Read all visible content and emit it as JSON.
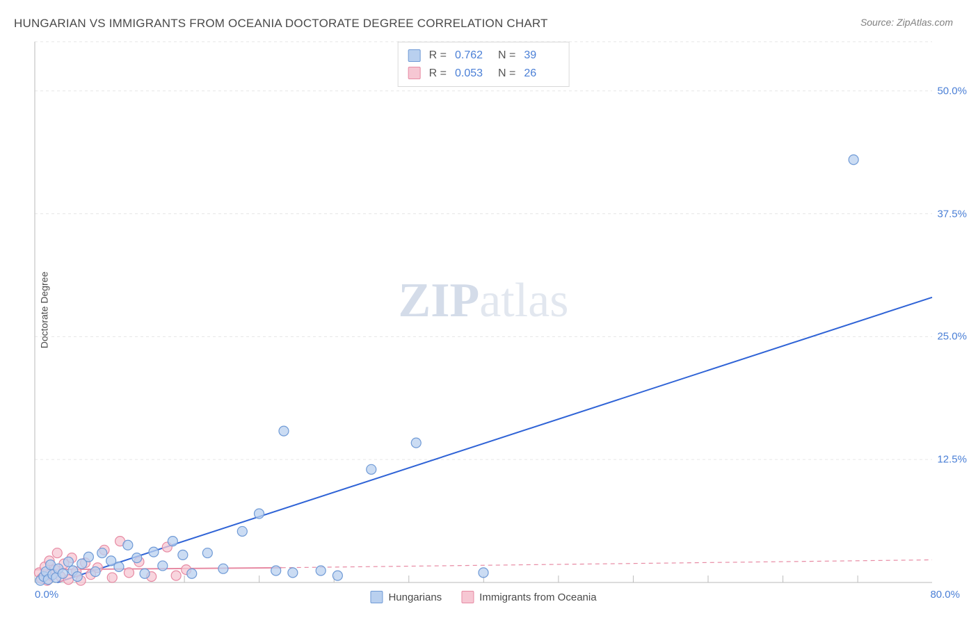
{
  "title": "HUNGARIAN VS IMMIGRANTS FROM OCEANIA DOCTORATE DEGREE CORRELATION CHART",
  "source": "Source: ZipAtlas.com",
  "ylabel": "Doctorate Degree",
  "watermark_a": "ZIP",
  "watermark_b": "atlas",
  "chart": {
    "type": "scatter",
    "background_color": "#ffffff",
    "grid_color": "#e6e6e6",
    "grid_dash": "4 4",
    "axis_color": "#d0d0d0",
    "tick_color": "#bcbcbc",
    "label_color": "#4a7fd6",
    "text_color": "#4a4a4a",
    "label_fontsize": 15,
    "title_fontsize": 17,
    "xlim": [
      0,
      80
    ],
    "ylim": [
      0,
      55
    ],
    "yticks": [
      12.5,
      25.0,
      37.5,
      50.0
    ],
    "ytick_labels": [
      "12.5%",
      "25.0%",
      "37.5%",
      "50.0%"
    ],
    "x_origin_label": "0.0%",
    "x_max_label": "80.0%",
    "x_minor_step": 6.67,
    "marker_radius": 7,
    "marker_stroke_width": 1.2,
    "line_width": 2
  },
  "series": [
    {
      "name": "Hungarians",
      "fill": "#b9d0ef",
      "stroke": "#6f9ad6",
      "line_color": "#2f63d6",
      "line_dash": "none",
      "R": "0.762",
      "N": "39",
      "trend": {
        "x1": 2,
        "y1": 0,
        "x2": 80,
        "y2": 29
      },
      "trend_ext": null,
      "points": [
        [
          0.5,
          0.2
        ],
        [
          0.8,
          0.6
        ],
        [
          1.0,
          1.1
        ],
        [
          1.2,
          0.3
        ],
        [
          1.4,
          1.8
        ],
        [
          1.6,
          0.8
        ],
        [
          1.9,
          0.5
        ],
        [
          2.1,
          1.4
        ],
        [
          2.5,
          0.9
        ],
        [
          3.0,
          2.1
        ],
        [
          3.4,
          1.2
        ],
        [
          3.8,
          0.6
        ],
        [
          4.2,
          1.9
        ],
        [
          4.8,
          2.6
        ],
        [
          5.4,
          1.1
        ],
        [
          6.0,
          3.0
        ],
        [
          6.8,
          2.2
        ],
        [
          7.5,
          1.6
        ],
        [
          8.3,
          3.8
        ],
        [
          9.1,
          2.5
        ],
        [
          9.8,
          0.9
        ],
        [
          10.6,
          3.1
        ],
        [
          11.4,
          1.7
        ],
        [
          12.3,
          4.2
        ],
        [
          13.2,
          2.8
        ],
        [
          14.0,
          0.9
        ],
        [
          15.4,
          3.0
        ],
        [
          16.8,
          1.4
        ],
        [
          18.5,
          5.2
        ],
        [
          20.0,
          7.0
        ],
        [
          21.5,
          1.2
        ],
        [
          23.0,
          1.0
        ],
        [
          25.5,
          1.2
        ],
        [
          27.0,
          0.7
        ],
        [
          22.2,
          15.4
        ],
        [
          30.0,
          11.5
        ],
        [
          34.0,
          14.2
        ],
        [
          40.0,
          1.0
        ],
        [
          73.0,
          43.0
        ]
      ]
    },
    {
      "name": "Immigrants from Oceania",
      "fill": "#f6c7d3",
      "stroke": "#e78aa3",
      "line_color": "#e78aa3",
      "line_dash": "6 5",
      "R": "0.053",
      "N": "26",
      "trend": {
        "x1": 0,
        "y1": 1.3,
        "x2": 22,
        "y2": 1.5
      },
      "trend_ext": {
        "x1": 22,
        "y1": 1.5,
        "x2": 80,
        "y2": 2.3
      },
      "points": [
        [
          0.4,
          1.0
        ],
        [
          0.6,
          0.4
        ],
        [
          0.9,
          1.6
        ],
        [
          1.1,
          0.2
        ],
        [
          1.3,
          2.2
        ],
        [
          1.5,
          0.7
        ],
        [
          1.8,
          1.3
        ],
        [
          2.0,
          3.0
        ],
        [
          2.3,
          0.6
        ],
        [
          2.6,
          1.9
        ],
        [
          3.0,
          0.3
        ],
        [
          3.3,
          2.5
        ],
        [
          3.7,
          1.1
        ],
        [
          4.1,
          0.2
        ],
        [
          4.5,
          2.0
        ],
        [
          5.0,
          0.8
        ],
        [
          5.6,
          1.5
        ],
        [
          6.2,
          3.3
        ],
        [
          6.9,
          0.5
        ],
        [
          7.6,
          4.2
        ],
        [
          8.4,
          1.0
        ],
        [
          9.3,
          2.1
        ],
        [
          10.4,
          0.6
        ],
        [
          11.8,
          3.6
        ],
        [
          13.5,
          1.3
        ],
        [
          12.6,
          0.7
        ]
      ]
    }
  ],
  "legend": {
    "series1_label": "Hungarians",
    "series2_label": "Immigrants from Oceania"
  },
  "stats_labels": {
    "R": "R  =",
    "N": "N  ="
  }
}
